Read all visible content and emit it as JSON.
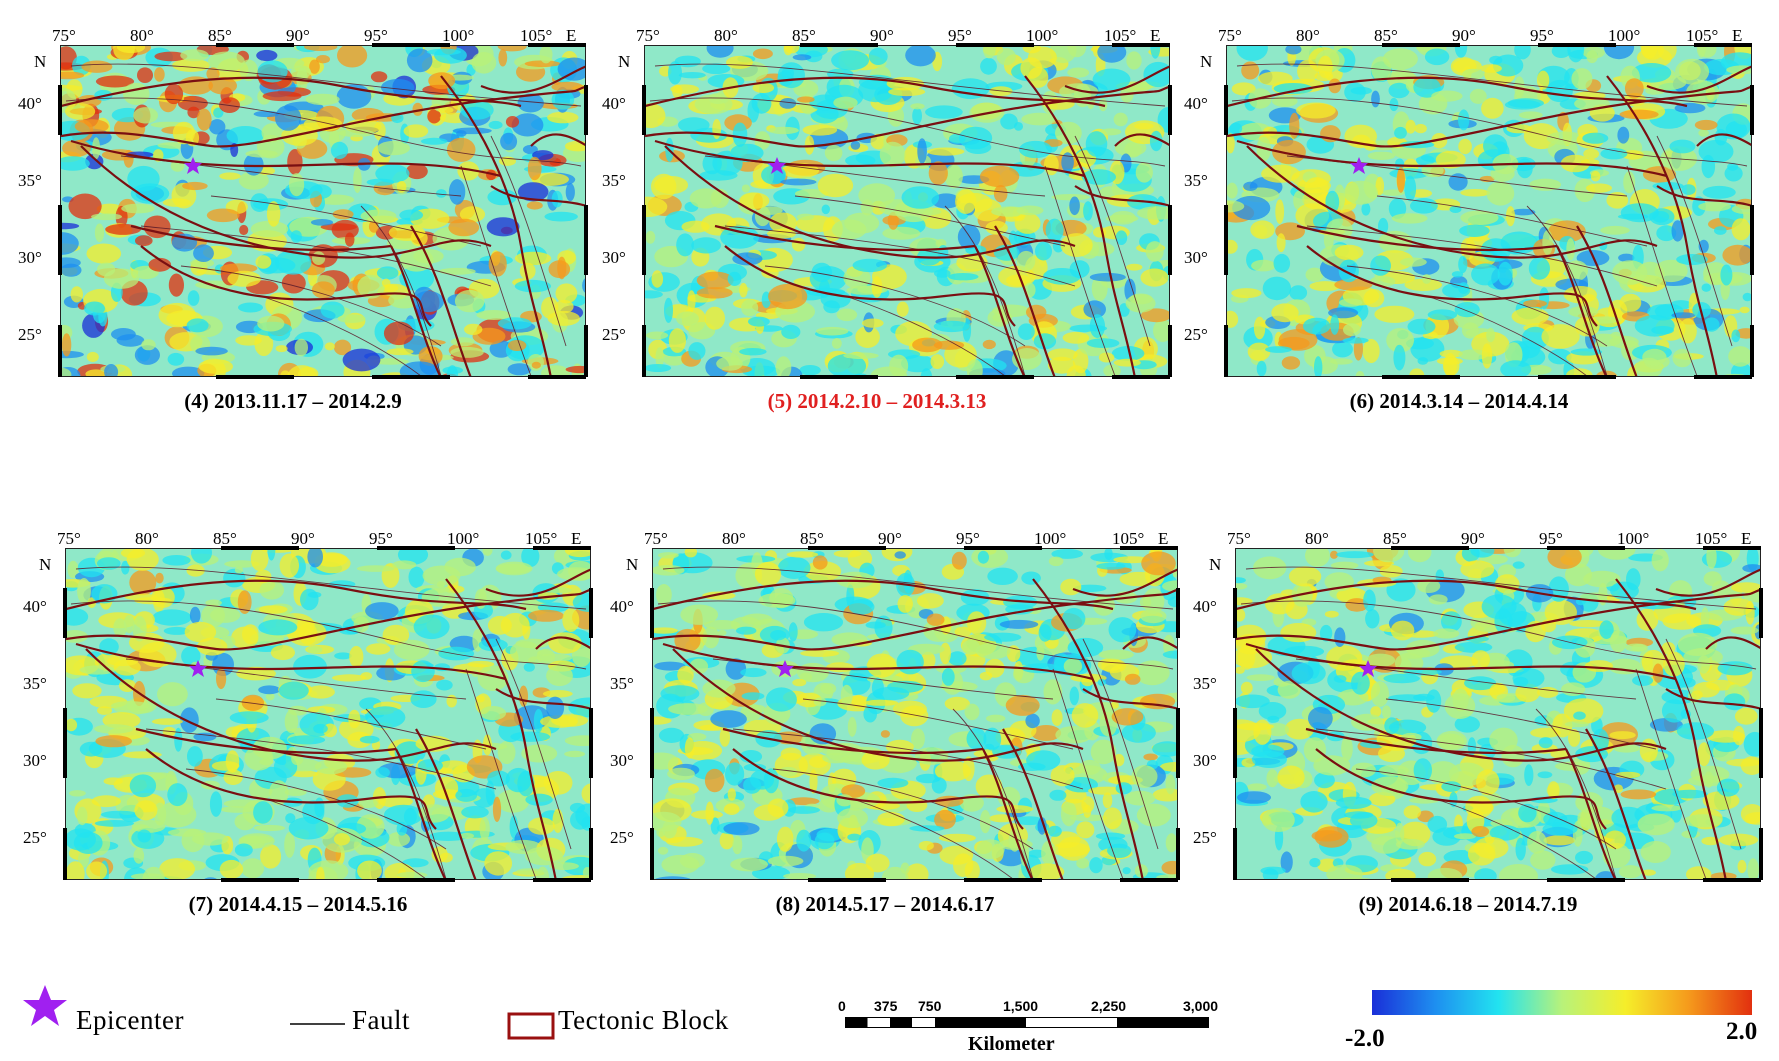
{
  "lon_labels": [
    "75°",
    "80°",
    "85°",
    "90°",
    "95°",
    "100°",
    "105°",
    "E"
  ],
  "lat_labels": [
    "N",
    "40°",
    "35°",
    "30°",
    "25°"
  ],
  "panels": [
    {
      "caption": "(4) 2013.11.17 – 2014.2.9",
      "highlight": false,
      "intensity": 1.0
    },
    {
      "caption": "(5) 2014.2.10 – 2014.3.13",
      "highlight": true,
      "intensity": 0.6
    },
    {
      "caption": "(6) 2014.3.14 – 2014.4.14",
      "highlight": false,
      "intensity": 0.6
    },
    {
      "caption": "(7) 2014.4.15 – 2014.5.16",
      "highlight": false,
      "intensity": 0.55
    },
    {
      "caption": "(8) 2014.5.17 – 2014.6.17",
      "highlight": false,
      "intensity": 0.55
    },
    {
      "caption": "(9) 2014.6.18 – 2014.7.19",
      "highlight": false,
      "intensity": 0.55
    }
  ],
  "legend": {
    "epicenter": "Epicenter",
    "fault": "Fault",
    "tectonic_block": "Tectonic Block"
  },
  "scale_bar": {
    "ticks": [
      "0",
      "375",
      "750",
      "1,500",
      "2,250",
      "3,000"
    ],
    "unit": "Kilometer"
  },
  "colorbar": {
    "min": "-2.0",
    "max": "2.0",
    "colors": [
      "#1a2fd8",
      "#1e8ff0",
      "#22e3f0",
      "#b8f27a",
      "#f5ee2a",
      "#f59a1c",
      "#e2300f"
    ]
  },
  "colors": {
    "highlight_caption": "#e02020",
    "epicenter": "#a020f0",
    "fault": "#7a0f12",
    "thin_fault": "#5a1a2a"
  }
}
